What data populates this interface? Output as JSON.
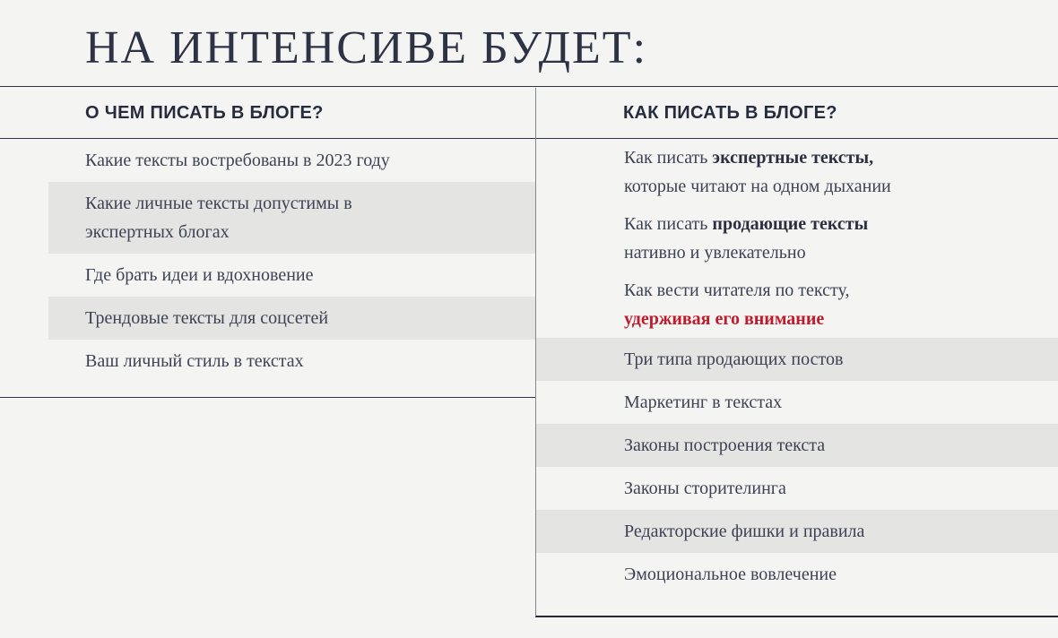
{
  "title": "НА ИНТЕНСИВЕ БУДЕТ:",
  "colors": {
    "background": "#f4f5f3",
    "text": "#3d4254",
    "heading": "#2d3244",
    "highlight_band": "#e4e4e3",
    "accent_red": "#bf1b2c",
    "divider_line": "#2e3345"
  },
  "columns": {
    "left": {
      "header": "О ЧЕМ ПИСАТЬ В БЛОГЕ?",
      "items": [
        {
          "highlighted": false,
          "lines": [
            [
              {
                "t": "Какие тексты востребованы в 2023 году",
                "s": "n"
              }
            ]
          ]
        },
        {
          "highlighted": true,
          "lines": [
            [
              {
                "t": "Какие личные тексты допустимы в",
                "s": "n"
              }
            ],
            [
              {
                "t": "экспертных блогах",
                "s": "n"
              }
            ]
          ]
        },
        {
          "highlighted": false,
          "lines": [
            [
              {
                "t": "Где брать идеи и вдохновение",
                "s": "n"
              }
            ]
          ]
        },
        {
          "highlighted": true,
          "lines": [
            [
              {
                "t": "Трендовые тексты для соцсетей",
                "s": "n"
              }
            ]
          ]
        },
        {
          "highlighted": false,
          "lines": [
            [
              {
                "t": "Ваш личный стиль в текстах",
                "s": "n"
              }
            ]
          ]
        }
      ]
    },
    "right": {
      "header": "КАК ПИСАТЬ В БЛОГЕ?",
      "items": [
        {
          "highlighted": false,
          "lines": [
            [
              {
                "t": "Как писать ",
                "s": "n"
              },
              {
                "t": "экспертные тексты,",
                "s": "b"
              }
            ],
            [
              {
                "t": "которые читают на одном дыхании",
                "s": "n"
              }
            ]
          ]
        },
        {
          "highlighted": false,
          "lines": [
            [
              {
                "t": "Как писать ",
                "s": "n"
              },
              {
                "t": "продающие тексты",
                "s": "b"
              }
            ],
            [
              {
                "t": "нативно и увлекательно",
                "s": "n"
              }
            ]
          ]
        },
        {
          "highlighted": false,
          "lines": [
            [
              {
                "t": "Как вести читателя по тексту,",
                "s": "n"
              }
            ],
            [
              {
                "t": "удерживая его внимание",
                "s": "r"
              }
            ]
          ]
        },
        {
          "highlighted": true,
          "lines": [
            [
              {
                "t": "Три типа продающих постов",
                "s": "n"
              }
            ]
          ]
        },
        {
          "highlighted": false,
          "lines": [
            [
              {
                "t": "Маркетинг в текстах",
                "s": "n"
              }
            ]
          ]
        },
        {
          "highlighted": true,
          "lines": [
            [
              {
                "t": "Законы построения текста",
                "s": "n"
              }
            ]
          ]
        },
        {
          "highlighted": false,
          "lines": [
            [
              {
                "t": "Законы сторителинга",
                "s": "n"
              }
            ]
          ]
        },
        {
          "highlighted": true,
          "lines": [
            [
              {
                "t": "Редакторские фишки и правила",
                "s": "n"
              }
            ]
          ]
        },
        {
          "highlighted": false,
          "lines": [
            [
              {
                "t": "Эмоциональное вовлечение",
                "s": "n"
              }
            ]
          ]
        }
      ]
    }
  }
}
